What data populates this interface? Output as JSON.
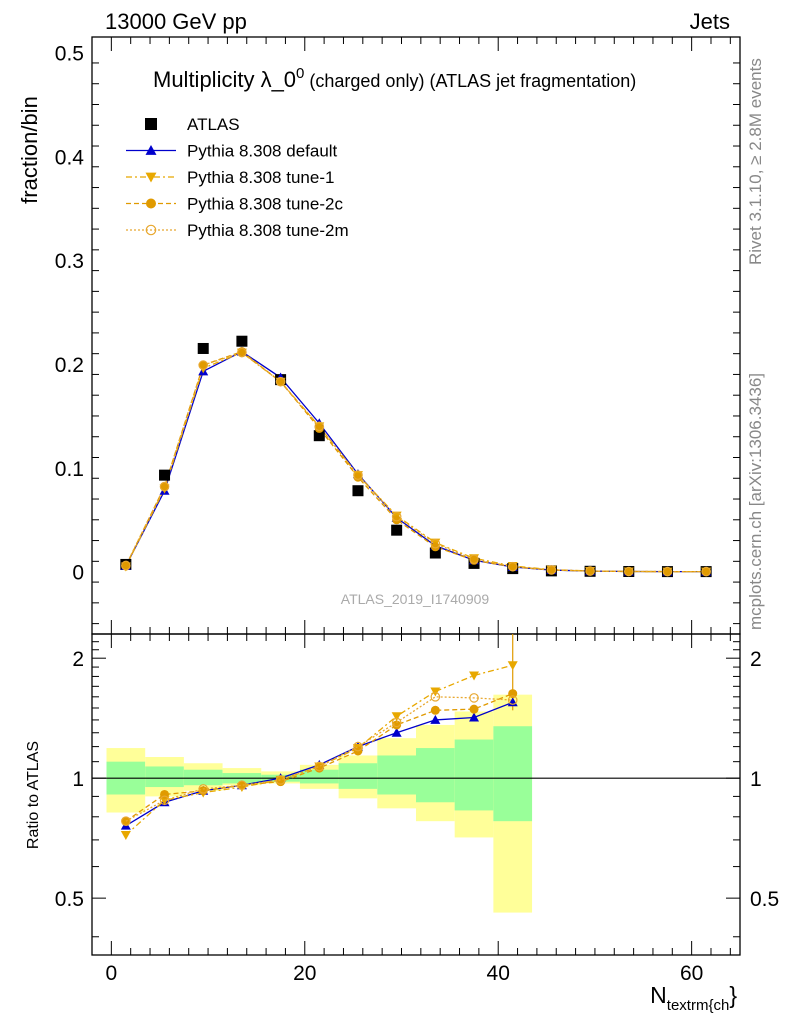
{
  "header": {
    "left": "13000 GeV pp",
    "right": "Jets"
  },
  "side_labels": {
    "rivet": "Rivet 3.1.10, ≥ 2.8M events",
    "mcplots": "mcplots.cern.ch [arXiv:1306.3436]"
  },
  "watermark": "ATLAS_2019_I1740909",
  "chart_data": [
    {
      "type": "scatter",
      "title": "Multiplicity λ_0⁰ (charged only) (ATLAS jet fragmentation)",
      "title_main": "Multiplicity λ_0",
      "title_sup": "0",
      "title_rest": " (charged only) (ATLAS jet fragmentation)",
      "ylabel": "fraction/bin",
      "xlabel": "N",
      "xlabel_sub": "textrm{ch",
      "xlabel_tail": "}",
      "xlim": [
        -2,
        65
      ],
      "ylim": [
        -0.06,
        0.515
      ],
      "xticks": [
        0,
        20,
        40,
        60
      ],
      "yticks": [
        0,
        0.1,
        0.2,
        0.3,
        0.4,
        0.5
      ],
      "ytick_labels": [
        "0",
        "0.1",
        "0.2",
        "0.3",
        "0.4",
        "0.5"
      ],
      "legend_position": "top-left",
      "x": [
        1.5,
        5.5,
        9.5,
        13.5,
        17.5,
        21.5,
        25.5,
        29.5,
        33.5,
        37.5,
        41.5,
        45.5,
        49.5,
        53.5,
        57.5,
        61.5
      ],
      "series": [
        {
          "name": "ATLAS",
          "color": "#000000",
          "marker": "square",
          "values": [
            0.007,
            0.093,
            0.215,
            0.222,
            0.185,
            0.131,
            0.078,
            0.04,
            0.018,
            0.008,
            0.003,
            0.0008,
            0.0004,
            0.0002,
            0.0001,
            0.0001
          ]
        },
        {
          "name": "Pythia 8.308 default",
          "color": "#0000cc",
          "marker": "triangle-up",
          "dash": "",
          "values": [
            0.0055,
            0.078,
            0.193,
            0.212,
            0.187,
            0.143,
            0.094,
            0.052,
            0.025,
            0.011,
            0.0045,
            0.0016,
            0.0006,
            0.0002,
            0.0001,
            0.0001
          ]
        },
        {
          "name": "Pythia 8.308 tune-1",
          "color": "#e8a800",
          "marker": "triangle-down",
          "dash": "6,3,2,3",
          "values": [
            0.005,
            0.08,
            0.196,
            0.211,
            0.183,
            0.14,
            0.093,
            0.054,
            0.028,
            0.013,
            0.0055,
            0.002,
            0.0007,
            0.0002,
            0.0001,
            0.0001
          ]
        },
        {
          "name": "Pythia 8.308 tune-2c",
          "color": "#e09a00",
          "marker": "circle",
          "dash": "5,3",
          "values": [
            0.0055,
            0.082,
            0.199,
            0.212,
            0.183,
            0.138,
            0.091,
            0.05,
            0.024,
            0.011,
            0.0047,
            0.0017,
            0.0006,
            0.0002,
            0.0001,
            0.0001
          ]
        },
        {
          "name": "Pythia 8.308 tune-2m",
          "color": "#e8a830",
          "marker": "circle-open",
          "dash": "2,2",
          "values": [
            0.006,
            0.082,
            0.199,
            0.211,
            0.183,
            0.14,
            0.093,
            0.053,
            0.027,
            0.012,
            0.0048,
            0.0017,
            0.0006,
            0.0002,
            0.0001,
            0.0001
          ]
        }
      ]
    },
    {
      "type": "scatter",
      "ylabel": "Ratio to ATLAS",
      "xlim": [
        -2,
        65
      ],
      "ylim": [
        0.36,
        2.3
      ],
      "yticks": [
        0.5,
        1,
        2
      ],
      "ytick_labels": [
        "0.5",
        "1",
        "2"
      ],
      "bin_edges": [
        -0.5,
        3.5,
        7.5,
        11.5,
        15.5,
        19.5,
        23.5,
        27.5,
        31.5,
        35.5,
        39.5,
        43.5
      ],
      "band_yellow": {
        "color": "#ffff99",
        "low": [
          0.82,
          0.9,
          0.93,
          0.96,
          0.97,
          0.94,
          0.89,
          0.84,
          0.78,
          0.71,
          0.46
        ],
        "high": [
          1.19,
          1.13,
          1.09,
          1.06,
          1.04,
          1.08,
          1.14,
          1.26,
          1.36,
          1.47,
          1.62
        ]
      },
      "band_green": {
        "color": "#99ff99",
        "low": [
          0.91,
          0.95,
          0.96,
          0.97,
          0.98,
          0.97,
          0.94,
          0.91,
          0.87,
          0.83,
          0.78
        ],
        "high": [
          1.1,
          1.07,
          1.05,
          1.03,
          1.02,
          1.05,
          1.09,
          1.14,
          1.19,
          1.25,
          1.35
        ]
      },
      "x": [
        1.5,
        5.5,
        9.5,
        13.5,
        17.5,
        21.5,
        25.5,
        29.5,
        33.5,
        37.5,
        41.5
      ],
      "series": [
        {
          "name": "Pythia 8.308 default",
          "color": "#0000cc",
          "marker": "triangle-up",
          "dash": "",
          "values": [
            0.76,
            0.87,
            0.93,
            0.96,
            1.0,
            1.08,
            1.2,
            1.3,
            1.4,
            1.42,
            1.55
          ]
        },
        {
          "name": "Pythia 8.308 tune-1",
          "color": "#e8a800",
          "marker": "triangle-down",
          "dash": "6,3,2,3",
          "values": [
            0.72,
            0.88,
            0.92,
            0.95,
            0.99,
            1.07,
            1.19,
            1.43,
            1.65,
            1.81,
            1.92
          ]
        },
        {
          "name": "Pythia 8.308 tune-2c",
          "color": "#e09a00",
          "marker": "circle",
          "dash": "5,3",
          "values": [
            0.78,
            0.91,
            0.93,
            0.96,
            0.98,
            1.06,
            1.17,
            1.36,
            1.48,
            1.49,
            1.63
          ]
        },
        {
          "name": "Pythia 8.308 tune-2m",
          "color": "#e8a830",
          "marker": "circle-open",
          "dash": "2,2",
          "values": [
            0.78,
            0.88,
            0.94,
            0.96,
            0.99,
            1.07,
            1.2,
            1.38,
            1.6,
            1.59,
            1.57
          ]
        }
      ]
    }
  ]
}
